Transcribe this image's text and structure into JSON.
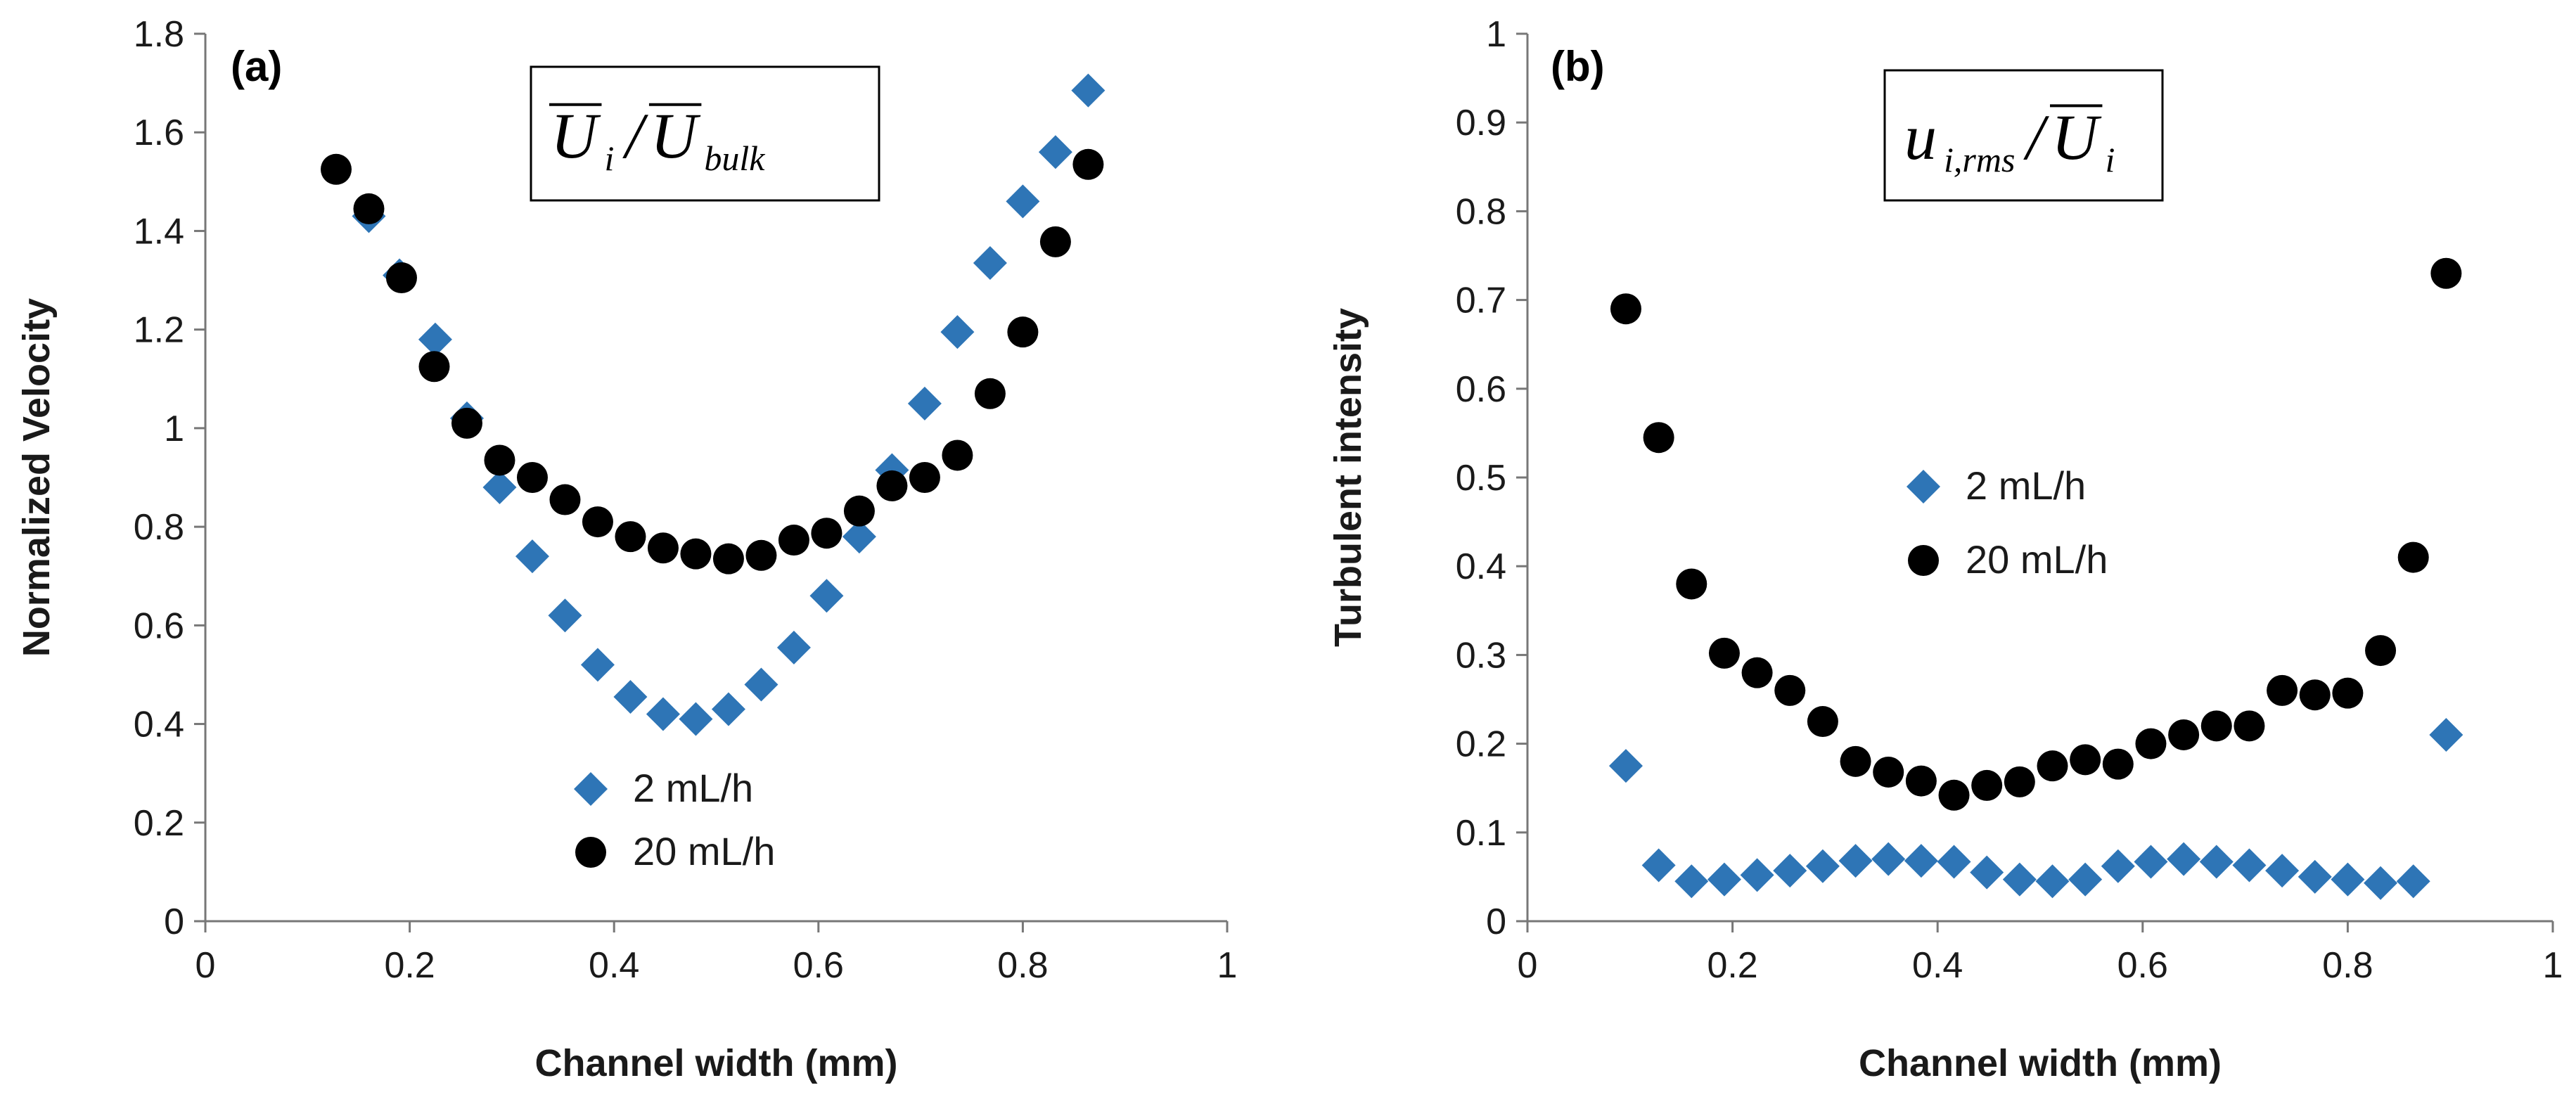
{
  "chart_data": [
    {
      "type": "scatter",
      "panel_label": "(a)",
      "title": "",
      "xlabel": "Channel width (mm)",
      "ylabel": "Normalized Velocity",
      "xlim": [
        0,
        1
      ],
      "ylim": [
        0,
        1.8
      ],
      "xticks": [
        "0",
        "0.2",
        "0.4",
        "0.6",
        "0.8",
        "1"
      ],
      "yticks": [
        "0",
        "0.2",
        "0.4",
        "0.6",
        "0.8",
        "1",
        "1.2",
        "1.4",
        "1.6",
        "1.8"
      ],
      "formula": {
        "main": "U",
        "sub": "i",
        "sep": "/",
        "main2": "U",
        "sub2": "bulk"
      },
      "legend": {
        "position": "lower-center",
        "entries": [
          "2 mL/h",
          "20 mL/h"
        ]
      },
      "series": [
        {
          "name": "2 mL/h",
          "marker": "diamond",
          "color": "#2e75b6",
          "x": [
            0.16,
            0.19,
            0.225,
            0.256,
            0.288,
            0.32,
            0.352,
            0.384,
            0.416,
            0.448,
            0.48,
            0.512,
            0.544,
            0.576,
            0.608,
            0.64,
            0.672,
            0.704,
            0.736,
            0.768,
            0.8,
            0.832,
            0.864
          ],
          "y": [
            1.43,
            1.31,
            1.18,
            1.02,
            0.88,
            0.74,
            0.62,
            0.52,
            0.455,
            0.42,
            0.41,
            0.43,
            0.48,
            0.555,
            0.66,
            0.78,
            0.915,
            1.05,
            1.195,
            1.335,
            1.46,
            1.56,
            1.685
          ]
        },
        {
          "name": "20 mL/h",
          "marker": "circle",
          "color": "#000000",
          "x": [
            0.128,
            0.16,
            0.192,
            0.224,
            0.256,
            0.288,
            0.32,
            0.352,
            0.384,
            0.416,
            0.448,
            0.48,
            0.512,
            0.544,
            0.576,
            0.608,
            0.64,
            0.672,
            0.704,
            0.736,
            0.768,
            0.8,
            0.832,
            0.864
          ],
          "y": [
            1.525,
            1.445,
            1.305,
            1.125,
            1.01,
            0.935,
            0.9,
            0.855,
            0.81,
            0.78,
            0.757,
            0.745,
            0.735,
            0.742,
            0.773,
            0.787,
            0.832,
            0.883,
            0.9,
            0.945,
            1.07,
            1.195,
            1.378,
            1.535
          ]
        }
      ]
    },
    {
      "type": "scatter",
      "panel_label": "(b)",
      "title": "",
      "xlabel": "Channel width (mm)",
      "ylabel": "Turbulent intensity",
      "xlim": [
        0,
        1
      ],
      "ylim": [
        0,
        1
      ],
      "xticks": [
        "0",
        "0.2",
        "0.4",
        "0.6",
        "0.8",
        "1"
      ],
      "yticks": [
        "0",
        "0.1",
        "0.2",
        "0.3",
        "0.4",
        "0.5",
        "0.6",
        "0.7",
        "0.8",
        "0.9",
        "1"
      ],
      "formula": {
        "main": "u",
        "sub": "i,rms",
        "sep": "/",
        "main2": "U",
        "sub2": "i"
      },
      "legend": {
        "position": "center",
        "entries": [
          "2 mL/h",
          "20 mL/h"
        ]
      },
      "series": [
        {
          "name": "2 mL/h",
          "marker": "diamond",
          "color": "#2e75b6",
          "x": [
            0.096,
            0.128,
            0.16,
            0.192,
            0.224,
            0.256,
            0.288,
            0.32,
            0.352,
            0.384,
            0.416,
            0.448,
            0.48,
            0.512,
            0.544,
            0.576,
            0.608,
            0.64,
            0.672,
            0.704,
            0.736,
            0.768,
            0.8,
            0.832,
            0.864,
            0.896
          ],
          "y": [
            0.175,
            0.063,
            0.045,
            0.047,
            0.052,
            0.057,
            0.062,
            0.068,
            0.07,
            0.068,
            0.067,
            0.055,
            0.047,
            0.045,
            0.047,
            0.062,
            0.067,
            0.07,
            0.067,
            0.063,
            0.057,
            0.05,
            0.047,
            0.043,
            0.045,
            0.21
          ]
        },
        {
          "name": "20 mL/h",
          "marker": "circle",
          "color": "#000000",
          "x": [
            0.096,
            0.128,
            0.16,
            0.192,
            0.224,
            0.256,
            0.288,
            0.32,
            0.352,
            0.384,
            0.416,
            0.448,
            0.48,
            0.512,
            0.544,
            0.576,
            0.608,
            0.64,
            0.672,
            0.704,
            0.736,
            0.768,
            0.8,
            0.832,
            0.864,
            0.896
          ],
          "y": [
            0.69,
            0.545,
            0.38,
            0.302,
            0.28,
            0.26,
            0.225,
            0.18,
            0.168,
            0.158,
            0.142,
            0.153,
            0.157,
            0.175,
            0.182,
            0.177,
            0.2,
            0.21,
            0.22,
            0.22,
            0.26,
            0.255,
            0.257,
            0.305,
            0.41,
            0.73
          ]
        }
      ]
    }
  ]
}
